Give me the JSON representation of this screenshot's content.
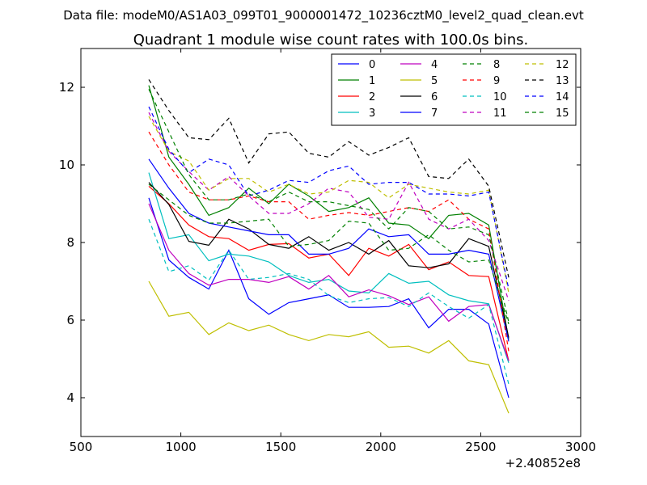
{
  "chart_data": {
    "type": "line",
    "suptitle": "Data file: modeM0/AS1A03_099T01_9000001472_10236cztM0_level2_quad_clean.evt",
    "title": "Quadrant 1 module wise count rates with 100.0s bins.",
    "xlabel": "",
    "ylabel": "",
    "x_offset_label": "+2.40852e8",
    "xlim": [
      500,
      3000
    ],
    "ylim": [
      3,
      13
    ],
    "xticks": [
      500,
      1000,
      1500,
      2000,
      2500,
      3000
    ],
    "xtick_labels": [
      "500",
      "1000",
      "1500",
      "2000",
      "2500",
      "3000"
    ],
    "yticks": [
      4,
      6,
      8,
      10,
      12
    ],
    "ytick_labels": [
      "4",
      "6",
      "8",
      "10",
      "12"
    ],
    "legend_position": "top-right",
    "x": [
      840,
      940,
      1040,
      1140,
      1240,
      1340,
      1440,
      1540,
      1640,
      1740,
      1840,
      1940,
      2040,
      2140,
      2240,
      2340,
      2440,
      2540,
      2640
    ],
    "series": [
      {
        "name": "0",
        "color": "#0000ff",
        "style": "solid",
        "values": [
          9.15,
          7.55,
          7.1,
          6.8,
          7.8,
          6.55,
          6.15,
          6.45,
          6.55,
          6.65,
          6.33,
          6.33,
          6.35,
          6.55,
          5.8,
          6.28,
          6.28,
          5.9,
          4.0
        ]
      },
      {
        "name": "1",
        "color": "#008000",
        "style": "solid",
        "values": [
          12.05,
          10.2,
          9.5,
          8.7,
          8.9,
          9.4,
          9.0,
          9.5,
          9.2,
          8.8,
          8.9,
          9.15,
          8.5,
          8.45,
          8.1,
          8.7,
          8.75,
          8.45,
          5.5
        ]
      },
      {
        "name": "2",
        "color": "#ff0000",
        "style": "solid",
        "values": [
          9.45,
          9.0,
          8.45,
          8.15,
          8.1,
          7.8,
          7.95,
          7.97,
          7.6,
          7.7,
          7.15,
          7.85,
          7.65,
          7.95,
          7.3,
          7.5,
          7.15,
          7.12,
          4.95
        ]
      },
      {
        "name": "3",
        "color": "#00bfbf",
        "style": "solid",
        "values": [
          9.8,
          8.1,
          8.2,
          7.53,
          7.7,
          7.65,
          7.5,
          7.15,
          6.97,
          7.05,
          6.75,
          6.7,
          7.2,
          6.95,
          7.0,
          6.65,
          6.5,
          6.42,
          4.9
        ]
      },
      {
        "name": "4",
        "color": "#bf00bf",
        "style": "solid",
        "values": [
          9.0,
          7.8,
          7.2,
          6.9,
          7.05,
          7.05,
          6.97,
          7.12,
          6.8,
          7.15,
          6.6,
          6.78,
          6.63,
          6.4,
          6.6,
          5.97,
          6.35,
          6.4,
          4.95
        ]
      },
      {
        "name": "5",
        "color": "#bfbf00",
        "style": "solid",
        "values": [
          7.0,
          6.1,
          6.2,
          5.63,
          5.93,
          5.73,
          5.87,
          5.63,
          5.47,
          5.63,
          5.57,
          5.7,
          5.3,
          5.33,
          5.15,
          5.47,
          4.95,
          4.85,
          3.6
        ]
      },
      {
        "name": "6",
        "color": "#000000",
        "style": "solid",
        "values": [
          9.55,
          8.98,
          8.03,
          7.93,
          8.6,
          8.35,
          7.95,
          7.85,
          8.15,
          7.8,
          8.0,
          7.7,
          8.05,
          7.4,
          7.35,
          7.45,
          8.1,
          7.9,
          5.55
        ]
      },
      {
        "name": "7",
        "color": "#0000ff",
        "style": "solid",
        "values": [
          10.15,
          9.4,
          8.75,
          8.5,
          8.4,
          8.3,
          8.2,
          8.2,
          7.7,
          7.7,
          7.85,
          8.35,
          8.15,
          8.2,
          7.7,
          7.7,
          7.8,
          7.7,
          5.45
        ]
      },
      {
        "name": "8",
        "color": "#008000",
        "style": "dashed",
        "values": [
          9.5,
          9.1,
          8.7,
          8.5,
          8.5,
          8.55,
          8.6,
          7.9,
          7.95,
          8.05,
          8.55,
          8.5,
          7.8,
          7.85,
          8.2,
          7.8,
          7.5,
          7.55,
          5.9
        ]
      },
      {
        "name": "9",
        "color": "#ff0000",
        "style": "dashed",
        "values": [
          10.85,
          10.0,
          9.3,
          9.1,
          9.1,
          9.2,
          9.05,
          9.05,
          8.6,
          8.7,
          8.77,
          8.7,
          8.8,
          8.9,
          8.8,
          9.1,
          8.6,
          8.35,
          5.2
        ]
      },
      {
        "name": "10",
        "color": "#00bfbf",
        "style": "dashed",
        "values": [
          8.6,
          7.25,
          7.4,
          7.03,
          7.8,
          7.05,
          7.1,
          7.2,
          7.05,
          6.63,
          6.45,
          6.55,
          6.58,
          6.35,
          6.7,
          6.35,
          6.05,
          6.4,
          4.35
        ]
      },
      {
        "name": "11",
        "color": "#bf00bf",
        "style": "dashed",
        "values": [
          11.35,
          10.35,
          9.83,
          9.35,
          9.7,
          9.2,
          8.75,
          8.75,
          9.0,
          9.4,
          9.3,
          8.65,
          8.6,
          9.55,
          8.6,
          8.35,
          8.6,
          8.05,
          6.5
        ]
      },
      {
        "name": "12",
        "color": "#bfbf00",
        "style": "dashed",
        "values": [
          11.25,
          10.35,
          10.1,
          9.35,
          9.65,
          9.65,
          9.3,
          9.5,
          9.25,
          9.3,
          9.6,
          9.55,
          9.15,
          9.5,
          9.4,
          9.3,
          9.25,
          9.35,
          6.7
        ]
      },
      {
        "name": "13",
        "color": "#000000",
        "style": "dashed",
        "values": [
          12.2,
          11.4,
          10.7,
          10.65,
          11.2,
          10.05,
          10.8,
          10.85,
          10.3,
          10.2,
          10.6,
          10.25,
          10.45,
          10.7,
          9.7,
          9.65,
          10.15,
          9.45,
          7.1
        ]
      },
      {
        "name": "14",
        "color": "#0000ff",
        "style": "dashed",
        "values": [
          11.5,
          10.4,
          9.8,
          10.15,
          10.0,
          9.2,
          9.35,
          9.6,
          9.55,
          9.85,
          9.97,
          9.5,
          9.55,
          9.55,
          9.25,
          9.25,
          9.2,
          9.3,
          6.8
        ]
      },
      {
        "name": "15",
        "color": "#008000",
        "style": "dashed",
        "values": [
          11.95,
          10.85,
          9.75,
          9.1,
          9.1,
          9.25,
          9.05,
          9.3,
          9.05,
          9.05,
          8.95,
          8.85,
          8.35,
          8.9,
          8.8,
          8.35,
          8.4,
          8.2,
          5.95
        ]
      }
    ]
  }
}
